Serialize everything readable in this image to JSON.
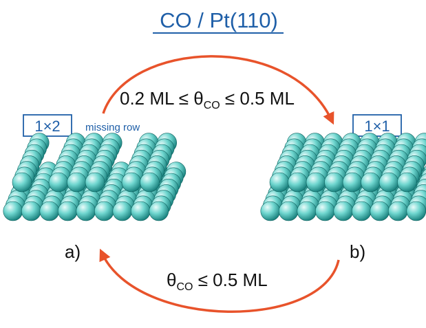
{
  "title": "CO / Pt(110)",
  "forward_condition": {
    "prefix": "0.2 ML ≤ θ",
    "subscript": "CO",
    "suffix": " ≤ 0.5 ML"
  },
  "reverse_condition": {
    "prefix": "θ",
    "subscript": "CO",
    "suffix": " ≤ 0.5 ML"
  },
  "surface_a": {
    "reconstruction": "1×2",
    "note": "missing row",
    "panel_label": "a)",
    "row_pattern": [
      1,
      0,
      1,
      1,
      1,
      0,
      1,
      1
    ]
  },
  "surface_b": {
    "reconstruction": "1×1",
    "panel_label": "b)",
    "row_pattern": [
      1,
      1,
      1,
      1,
      1,
      1,
      1,
      1
    ]
  },
  "colors": {
    "title": "#1f5fa8",
    "arrow": "#e8532b",
    "atom_fill": "#6fd6cf",
    "atom_dark": "#137a77",
    "atom_highlight": "#e9fbfa",
    "badge_border": "#1f5fa8"
  }
}
